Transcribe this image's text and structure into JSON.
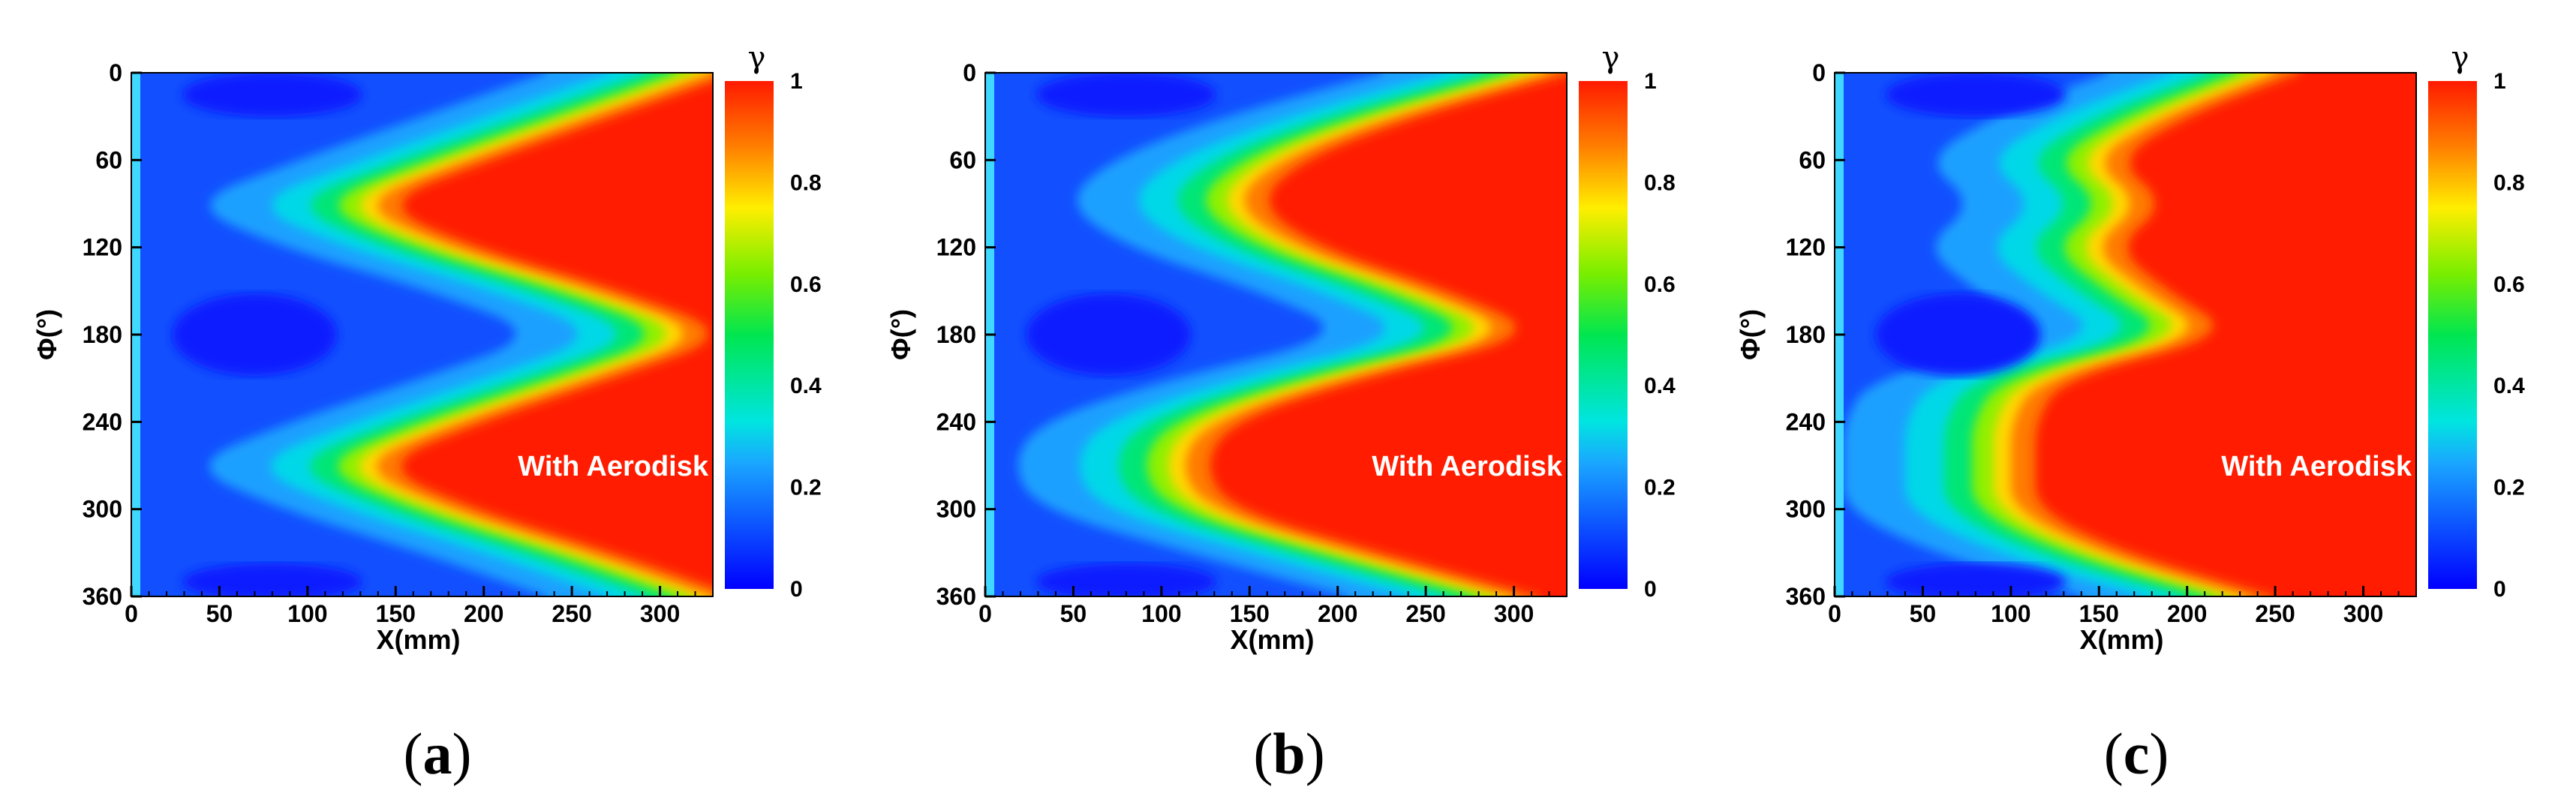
{
  "chart_data": [
    {
      "type": "heatmap",
      "panel_label": "a",
      "xlabel": "X(mm)",
      "ylabel": "Φ(°)",
      "xlim": [
        0,
        330
      ],
      "ylim": [
        360,
        0
      ],
      "xticks": [
        "0",
        "50",
        "100",
        "150",
        "200",
        "250",
        "300"
      ],
      "yticks": [
        "0",
        "60",
        "120",
        "180",
        "240",
        "300",
        "360"
      ],
      "colorbar": {
        "title": "γ",
        "range": [
          0,
          1
        ],
        "ticks": [
          "0",
          "0.2",
          "0.4",
          "0.6",
          "0.8",
          "1"
        ]
      },
      "annotation": "With Aerodisk",
      "front": [
        {
          "phi": 0,
          "x": 330
        },
        {
          "phi": 30,
          "x": 260
        },
        {
          "phi": 60,
          "x": 190
        },
        {
          "phi": 90,
          "x": 125
        },
        {
          "phi": 120,
          "x": 180
        },
        {
          "phi": 150,
          "x": 265
        },
        {
          "phi": 180,
          "x": 330
        },
        {
          "phi": 210,
          "x": 260
        },
        {
          "phi": 240,
          "x": 185
        },
        {
          "phi": 270,
          "x": 125
        },
        {
          "phi": 300,
          "x": 180
        },
        {
          "phi": 330,
          "x": 260
        },
        {
          "phi": 360,
          "x": 330
        }
      ]
    },
    {
      "type": "heatmap",
      "panel_label": "b",
      "xlabel": "X(mm)",
      "ylabel": "Φ(°)",
      "xlim": [
        0,
        330
      ],
      "ylim": [
        360,
        0
      ],
      "xticks": [
        "0",
        "50",
        "100",
        "150",
        "200",
        "250",
        "300"
      ],
      "yticks": [
        "0",
        "60",
        "120",
        "180",
        "240",
        "300",
        "360"
      ],
      "colorbar": {
        "title": "γ",
        "range": [
          0,
          1
        ],
        "ticks": [
          "0",
          "0.2",
          "0.4",
          "0.6",
          "0.8",
          "1"
        ]
      },
      "annotation": "With Aerodisk",
      "front": [
        {
          "phi": 0,
          "x": 320
        },
        {
          "phi": 30,
          "x": 230
        },
        {
          "phi": 60,
          "x": 165
        },
        {
          "phi": 90,
          "x": 140
        },
        {
          "phi": 120,
          "x": 175
        },
        {
          "phi": 150,
          "x": 250
        },
        {
          "phi": 180,
          "x": 305
        },
        {
          "phi": 210,
          "x": 200
        },
        {
          "phi": 240,
          "x": 125
        },
        {
          "phi": 270,
          "x": 110
        },
        {
          "phi": 300,
          "x": 125
        },
        {
          "phi": 330,
          "x": 210
        },
        {
          "phi": 360,
          "x": 300
        }
      ]
    },
    {
      "type": "heatmap",
      "panel_label": "c",
      "xlabel": "X(mm)",
      "ylabel": "Φ(°)",
      "xlim": [
        0,
        330
      ],
      "ylim": [
        360,
        0
      ],
      "xticks": [
        "0",
        "50",
        "100",
        "150",
        "200",
        "250",
        "300"
      ],
      "yticks": [
        "0",
        "60",
        "120",
        "180",
        "240",
        "300",
        "360"
      ],
      "colorbar": {
        "title": "γ",
        "range": [
          0,
          1
        ],
        "ticks": [
          "0",
          "0.2",
          "0.4",
          "0.6",
          "0.8",
          "1"
        ]
      },
      "annotation": "With Aerodisk",
      "front": [
        {
          "phi": 0,
          "x": 250
        },
        {
          "phi": 30,
          "x": 185
        },
        {
          "phi": 60,
          "x": 145
        },
        {
          "phi": 90,
          "x": 175
        },
        {
          "phi": 120,
          "x": 145
        },
        {
          "phi": 150,
          "x": 175
        },
        {
          "phi": 180,
          "x": 215
        },
        {
          "phi": 210,
          "x": 115
        },
        {
          "phi": 240,
          "x": 100
        },
        {
          "phi": 270,
          "x": 100
        },
        {
          "phi": 300,
          "x": 100
        },
        {
          "phi": 330,
          "x": 150
        },
        {
          "phi": 360,
          "x": 235
        }
      ]
    }
  ]
}
